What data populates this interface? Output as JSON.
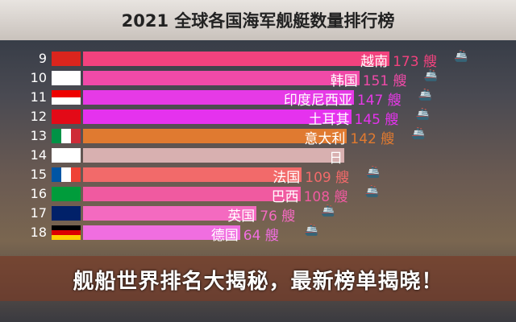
{
  "chart_data": {
    "type": "bar",
    "title": "2021 全球各国海军舰艇数量排行榜",
    "unit": "艘",
    "categories": [
      "越南",
      "韩国",
      "印度尼西亚",
      "土耳其",
      "意大利",
      "日",
      "法国",
      "巴西",
      "英国",
      "德国"
    ],
    "ranks": [
      "9",
      "10",
      "11",
      "12",
      "13",
      "14",
      "15",
      "16",
      "17",
      "18"
    ],
    "values": [
      173,
      151,
      147,
      145,
      142,
      null,
      109,
      108,
      76,
      64
    ],
    "colors": [
      "#f2427e",
      "#f04aa8",
      "#e63ae6",
      "#e532ee",
      "#e07a30",
      "#d8b0b0",
      "#f26a6a",
      "#f05aa0",
      "#f46ac0",
      "#f06ee0"
    ],
    "flags": [
      "vietnam",
      "south-korea",
      "indonesia",
      "turkey",
      "italy",
      "japan",
      "france",
      "brazil",
      "uk",
      "germany"
    ]
  },
  "headline": "舰船世界排名大揭秘，最新榜单揭晓！"
}
